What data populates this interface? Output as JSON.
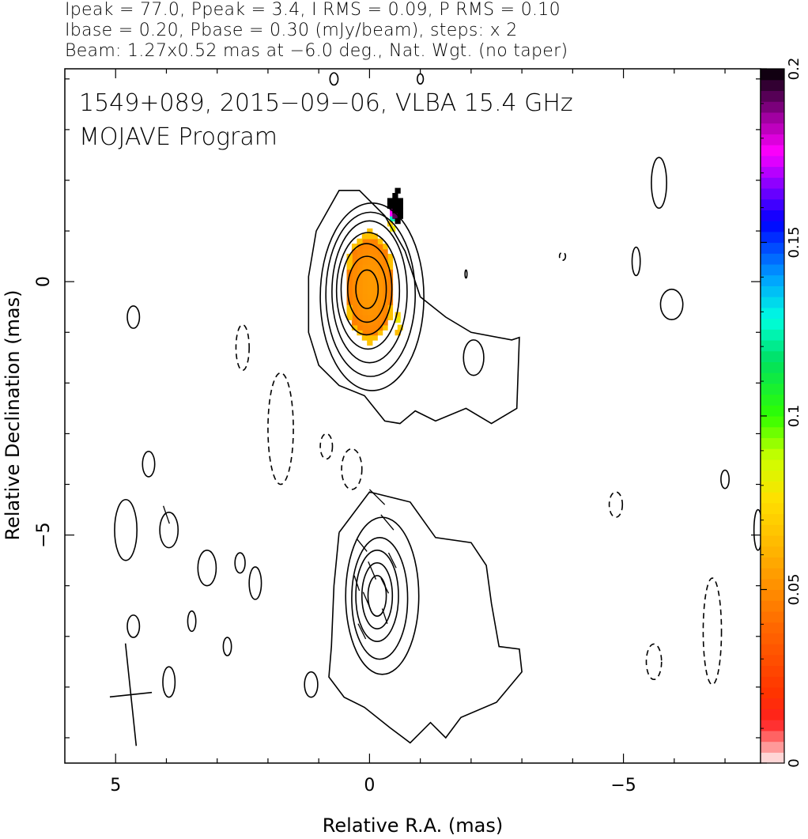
{
  "header": {
    "line1": "Ipeak = 77.0, Ppeak = 3.4, I RMS = 0.09, P RMS = 0.10",
    "line2": "Ibase = 0.20, Pbase = 0.30 (mJy/beam), steps: x 2",
    "line3": "Beam: 1.27x0.52 mas at −6.0 deg., Nat. Wgt. (no taper)"
  },
  "chart_data": {
    "type": "contour",
    "title": "1549+089, 2015−09−06, VLBA 15.4 GHz",
    "subtitle": "MOJAVE Program",
    "xlabel": "Relative R.A. (mas)",
    "ylabel": "Relative Declination (mas)",
    "xlim": [
      6.0,
      -7.7
    ],
    "ylim": [
      -9.5,
      4.2
    ],
    "x_ticks": [
      {
        "value": 5,
        "label": "5"
      },
      {
        "value": 0,
        "label": "0"
      },
      {
        "value": -5,
        "label": "−5"
      }
    ],
    "y_ticks": [
      {
        "value": 0,
        "label": "0"
      },
      {
        "value": -5,
        "label": "−5"
      }
    ],
    "colorbar": {
      "range": [
        0,
        0.2
      ],
      "ticks": [
        {
          "value": 0,
          "label": "0"
        },
        {
          "value": 0.05,
          "label": "0.05"
        },
        {
          "value": 0.1,
          "label": "0.1"
        },
        {
          "value": 0.15,
          "label": "0.15"
        },
        {
          "value": 0.2,
          "label": "0.2"
        }
      ],
      "stops": [
        {
          "v": 0.0,
          "color": "#fff4f4"
        },
        {
          "v": 0.03,
          "color": "#ff8080"
        },
        {
          "v": 0.06,
          "color": "#ff2020"
        },
        {
          "v": 0.1,
          "color": "#ff3300"
        },
        {
          "v": 0.2,
          "color": "#ff6a00"
        },
        {
          "v": 0.3,
          "color": "#ffb000"
        },
        {
          "v": 0.38,
          "color": "#ffe000"
        },
        {
          "v": 0.44,
          "color": "#ccff00"
        },
        {
          "v": 0.5,
          "color": "#30ff00"
        },
        {
          "v": 0.58,
          "color": "#00e060"
        },
        {
          "v": 0.64,
          "color": "#00ffe0"
        },
        {
          "v": 0.7,
          "color": "#00a0ff"
        },
        {
          "v": 0.78,
          "color": "#0000ff"
        },
        {
          "v": 0.83,
          "color": "#8000ff"
        },
        {
          "v": 0.88,
          "color": "#ff00ff"
        },
        {
          "v": 0.93,
          "color": "#a000a0"
        },
        {
          "v": 0.97,
          "color": "#400040"
        },
        {
          "v": 1.0,
          "color": "#000000"
        }
      ]
    },
    "components": [
      {
        "name": "core",
        "x": 0.05,
        "y": -0.15,
        "rx": 0.45,
        "ry": 0.8
      },
      {
        "name": "lower",
        "x": -0.15,
        "y": -6.2,
        "rx": 0.45,
        "ry": 0.9
      }
    ],
    "contours_core": [
      {
        "cx": 0.05,
        "cy": -0.15,
        "rx": 0.22,
        "ry": 0.38
      },
      {
        "cx": 0.05,
        "cy": -0.15,
        "rx": 0.38,
        "ry": 0.65
      },
      {
        "cx": 0.06,
        "cy": -0.15,
        "rx": 0.5,
        "ry": 0.9
      },
      {
        "cx": 0.03,
        "cy": -0.18,
        "rx": 0.62,
        "ry": 1.15
      },
      {
        "cx": 0.0,
        "cy": -0.2,
        "rx": 0.74,
        "ry": 1.4
      },
      {
        "cx": -0.02,
        "cy": -0.25,
        "rx": 0.88,
        "ry": 1.62
      },
      {
        "cx": -0.05,
        "cy": -0.3,
        "rx": 1.02,
        "ry": 1.85
      }
    ],
    "contours_lower": [
      {
        "cx": -0.15,
        "cy": -6.2,
        "rx": 0.18,
        "ry": 0.4
      },
      {
        "cx": -0.15,
        "cy": -6.2,
        "rx": 0.3,
        "ry": 0.65
      },
      {
        "cx": -0.15,
        "cy": -6.2,
        "rx": 0.42,
        "ry": 0.9
      },
      {
        "cx": -0.2,
        "cy": -6.25,
        "rx": 0.55,
        "ry": 1.2
      },
      {
        "cx": -0.25,
        "cy": -6.2,
        "rx": 0.72,
        "ry": 1.55
      }
    ],
    "outer_contour_core": [
      [
        1.05,
        1.0
      ],
      [
        0.6,
        1.8
      ],
      [
        0.2,
        1.8
      ],
      [
        -0.3,
        1.3
      ],
      [
        -0.7,
        0.6
      ],
      [
        -1.0,
        -0.3
      ],
      [
        -1.5,
        -0.7
      ],
      [
        -2.0,
        -1.0
      ],
      [
        -2.8,
        -1.15
      ],
      [
        -2.95,
        -1.1
      ],
      [
        -2.9,
        -2.5
      ],
      [
        -2.4,
        -2.8
      ],
      [
        -1.9,
        -2.5
      ],
      [
        -1.3,
        -2.75
      ],
      [
        -0.9,
        -2.55
      ],
      [
        -0.6,
        -2.8
      ],
      [
        -0.3,
        -2.75
      ],
      [
        0.1,
        -2.25
      ],
      [
        0.6,
        -2.05
      ],
      [
        1.0,
        -1.65
      ],
      [
        1.2,
        -1.0
      ],
      [
        1.2,
        0.1
      ],
      [
        1.05,
        1.0
      ]
    ],
    "outer_contour_lower": [
      [
        0.6,
        -4.95
      ],
      [
        0.0,
        -4.15
      ],
      [
        -0.8,
        -4.35
      ],
      [
        -1.3,
        -5.05
      ],
      [
        -2.0,
        -5.15
      ],
      [
        -2.3,
        -5.6
      ],
      [
        -2.4,
        -6.35
      ],
      [
        -2.55,
        -7.2
      ],
      [
        -2.95,
        -7.25
      ],
      [
        -3.0,
        -7.7
      ],
      [
        -2.5,
        -8.3
      ],
      [
        -1.8,
        -8.6
      ],
      [
        -1.5,
        -9.0
      ],
      [
        -1.2,
        -8.7
      ],
      [
        -0.8,
        -9.1
      ],
      [
        -0.4,
        -8.8
      ],
      [
        0.1,
        -8.4
      ],
      [
        0.5,
        -8.2
      ],
      [
        0.8,
        -7.8
      ],
      [
        0.75,
        -7.2
      ],
      [
        0.7,
        -6.0
      ],
      [
        0.6,
        -4.95
      ]
    ],
    "small_contours": [
      {
        "cx": 4.65,
        "cy": -0.7,
        "rx": 0.12,
        "ry": 0.22,
        "dash": false
      },
      {
        "cx": 2.5,
        "cy": -1.3,
        "rx": 0.13,
        "ry": 0.45,
        "dash": true
      },
      {
        "cx": 1.75,
        "cy": -2.9,
        "rx": 0.25,
        "ry": 1.1,
        "dash": true
      },
      {
        "cx": 0.85,
        "cy": -3.25,
        "rx": 0.12,
        "ry": 0.25,
        "dash": true
      },
      {
        "cx": 0.35,
        "cy": -3.7,
        "rx": 0.2,
        "ry": 0.4,
        "dash": true
      },
      {
        "cx": 4.35,
        "cy": -3.6,
        "rx": 0.12,
        "ry": 0.25,
        "dash": false
      },
      {
        "cx": 4.8,
        "cy": -4.9,
        "rx": 0.22,
        "ry": 0.6,
        "dash": false
      },
      {
        "cx": 3.95,
        "cy": -4.9,
        "rx": 0.18,
        "ry": 0.35,
        "dash": false
      },
      {
        "cx": 3.2,
        "cy": -5.65,
        "rx": 0.18,
        "ry": 0.35,
        "dash": false
      },
      {
        "cx": 2.55,
        "cy": -5.55,
        "rx": 0.1,
        "ry": 0.2,
        "dash": false
      },
      {
        "cx": 2.25,
        "cy": -5.95,
        "rx": 0.12,
        "ry": 0.32,
        "dash": false
      },
      {
        "cx": 4.65,
        "cy": -6.8,
        "rx": 0.12,
        "ry": 0.22,
        "dash": false
      },
      {
        "cx": 3.5,
        "cy": -6.7,
        "rx": 0.08,
        "ry": 0.2,
        "dash": false
      },
      {
        "cx": 2.8,
        "cy": -7.2,
        "rx": 0.08,
        "ry": 0.18,
        "dash": false
      },
      {
        "cx": 3.95,
        "cy": -7.9,
        "rx": 0.12,
        "ry": 0.3,
        "dash": false
      },
      {
        "cx": 1.15,
        "cy": -7.95,
        "rx": 0.13,
        "ry": 0.25,
        "dash": false
      },
      {
        "cx": -2.05,
        "cy": -1.5,
        "rx": 0.2,
        "ry": 0.35,
        "dash": false
      },
      {
        "cx": -5.7,
        "cy": 1.95,
        "rx": 0.15,
        "ry": 0.5,
        "dash": false
      },
      {
        "cx": -5.95,
        "cy": -0.45,
        "rx": 0.22,
        "ry": 0.3,
        "dash": false
      },
      {
        "cx": -5.25,
        "cy": 0.4,
        "rx": 0.08,
        "ry": 0.28,
        "dash": false
      },
      {
        "cx": -3.8,
        "cy": 0.5,
        "rx": 0.06,
        "ry": 0.08,
        "dash": true
      },
      {
        "cx": -1.9,
        "cy": 0.15,
        "rx": 0.02,
        "ry": 0.08,
        "dash": false
      },
      {
        "cx": -4.85,
        "cy": -4.4,
        "rx": 0.13,
        "ry": 0.25,
        "dash": true
      },
      {
        "cx": -7.0,
        "cy": -3.9,
        "rx": 0.08,
        "ry": 0.18,
        "dash": false
      },
      {
        "cx": -7.65,
        "cy": -4.9,
        "rx": 0.08,
        "ry": 0.4,
        "dash": false
      },
      {
        "cx": -5.6,
        "cy": -7.5,
        "rx": 0.15,
        "ry": 0.35,
        "dash": true
      },
      {
        "cx": -6.75,
        "cy": -6.9,
        "rx": 0.18,
        "ry": 1.05,
        "dash": true
      },
      {
        "cx": -1.0,
        "cy": 4.0,
        "rx": 0.06,
        "ry": 0.1,
        "dash": false
      },
      {
        "cx": 0.7,
        "cy": 4.0,
        "rx": 0.08,
        "ry": 0.12,
        "dash": false
      }
    ],
    "polarization_ticks": [
      [
        -0.15,
        -4.25,
        0.3,
        0.3
      ],
      [
        -0.35,
        -4.75,
        0.25,
        0.3
      ],
      [
        0.15,
        -5.2,
        0.2,
        0.25
      ],
      [
        -0.05,
        -5.7,
        0.15,
        0.35
      ],
      [
        -0.3,
        -6.0,
        0.15,
        0.3
      ],
      [
        0.25,
        -5.95,
        0.1,
        0.3
      ],
      [
        0.05,
        -6.3,
        0.15,
        0.35
      ],
      [
        -0.3,
        -6.6,
        0.1,
        0.3
      ],
      [
        0.15,
        -6.9,
        0.15,
        0.3
      ],
      [
        -0.45,
        -5.5,
        0.15,
        0.3
      ],
      [
        4.0,
        -4.6,
        0.12,
        0.35
      ]
    ],
    "beam": {
      "x": 4.7,
      "y": -8.15,
      "major": 1.27,
      "minor": 0.52,
      "pa_deg": -6.0
    }
  }
}
